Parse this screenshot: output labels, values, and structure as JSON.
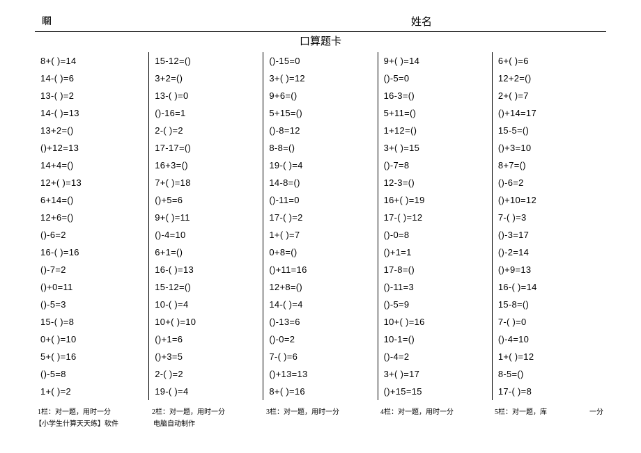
{
  "header": {
    "left_mark": "矙",
    "name_label": "姓名"
  },
  "title": "口算题卡",
  "columns": [
    [
      "8+(  )=14",
      "14-(  )=6",
      "13-(  )=2",
      "14-(  )=13",
      "13+2=()",
      "()+12=13",
      "14+4=()",
      "12+(  )=13",
      "6+14=()",
      "12+6=()",
      "()-6=2",
      "16-(  )=16",
      "()-7=2",
      "()+0=11",
      "()-5=3",
      "15-(  )=8",
      "0+(  )=10",
      "5+(  )=16",
      "()-5=8",
      "1+(  )=2"
    ],
    [
      "15-12=()",
      "3+2=()",
      "13-(  )=0",
      "()-16=1",
      "2-(  )=2",
      "17-17=()",
      "16+3=()",
      "7+(  )=18",
      "()+5=6",
      "9+(  )=11",
      "()-4=10",
      "6+1=()",
      "16-(  )=13",
      "15-12=()",
      "10-(  )=4",
      "10+(  )=10",
      "()+1=6",
      "()+3=5",
      "2-(  )=2",
      "19-(  )=4"
    ],
    [
      "()-15=0",
      "3+(  )=12",
      "9+6=()",
      "5+15=()",
      "()-8=12",
      "8-8=()",
      "19-(  )=4",
      "14-8=()",
      "()-11=0",
      "17-(  )=2",
      "1+(  )=7",
      "0+8=()",
      "()+11=16",
      "12+8=()",
      "14-(  )=4",
      "()-13=6",
      "()-0=2",
      "7-(  )=6",
      "()+13=13",
      "8+(  )=16"
    ],
    [
      "9+(  )=14",
      "()-5=0",
      "16-3=()",
      "5+11=()",
      "1+12=()",
      "3+(  )=15",
      "()-7=8",
      "12-3=()",
      "16+(  )=19",
      "17-(  )=12",
      "()-0=8",
      "()+1=1",
      "17-8=()",
      "()-11=3",
      "()-5=9",
      "10+(  )=16",
      "10-1=()",
      "()-4=2",
      "3+(  )=17",
      "()+15=15"
    ],
    [
      "6+(  )=6",
      "12+2=()",
      "2+(  )=7",
      "()+14=17",
      "15-5=()",
      "()+3=10",
      "8+7=()",
      "()-6=2",
      "()+10=12",
      "7-(  )=3",
      "()-3=17",
      "()-2=14",
      "()+9=13",
      "16-(  )=14",
      "15-8=()",
      "7-(  )=0",
      "()-4=10",
      "1+(  )=12",
      "8-5=()",
      "17-(  )=8"
    ]
  ],
  "footers": {
    "row1": [
      "1栏：对一题，用时一分",
      "2栏：对一题，用时一分",
      "3栏：对一题，用时一分",
      "4栏：对一题，用时一分"
    ],
    "row1_last_a": "5栏：对一题，库",
    "row1_last_b": "一分",
    "row2_a": "【小学生什算天天练】软件",
    "row2_b": "电脑自动制作"
  }
}
